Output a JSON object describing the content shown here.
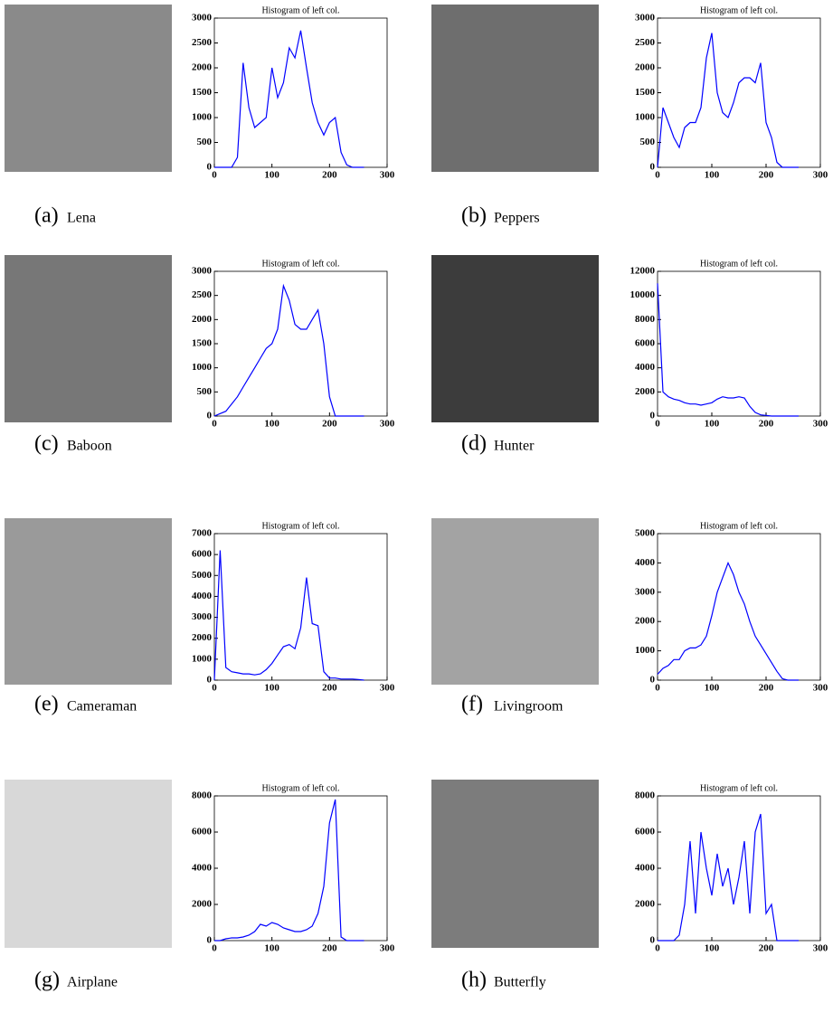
{
  "panels": [
    {
      "label": "(a)",
      "name": "Lena"
    },
    {
      "label": "(b)",
      "name": "Peppers"
    },
    {
      "label": "(c)",
      "name": "Baboon"
    },
    {
      "label": "(d)",
      "name": "Hunter"
    },
    {
      "label": "(e)",
      "name": "Cameraman"
    },
    {
      "label": "(f)",
      "name": "Livingroom"
    },
    {
      "label": "(g)",
      "name": "Airplane"
    },
    {
      "label": "(h)",
      "name": "Butterfly"
    }
  ],
  "chart_data": [
    {
      "type": "line",
      "title": "Histogram of left col.",
      "color": "#0000ff",
      "x": [
        0,
        10,
        20,
        30,
        40,
        50,
        60,
        70,
        80,
        90,
        100,
        110,
        120,
        130,
        140,
        150,
        160,
        170,
        180,
        190,
        200,
        210,
        220,
        230,
        240,
        250,
        260
      ],
      "values": [
        0,
        0,
        0,
        0,
        200,
        2100,
        1200,
        800,
        900,
        1000,
        2000,
        1400,
        1700,
        2400,
        2200,
        2750,
        2000,
        1300,
        900,
        650,
        900,
        1000,
        300,
        50,
        0,
        0,
        0
      ],
      "xlim": [
        0,
        300
      ],
      "xticks": [
        0,
        100,
        200,
        300
      ],
      "ylim": [
        0,
        3000
      ],
      "yticks": [
        0,
        500,
        1000,
        1500,
        2000,
        2500,
        3000
      ]
    },
    {
      "type": "line",
      "title": "Histogram of left col.",
      "color": "#0000ff",
      "x": [
        0,
        10,
        20,
        30,
        40,
        50,
        60,
        70,
        80,
        90,
        100,
        110,
        120,
        130,
        140,
        150,
        160,
        170,
        180,
        190,
        200,
        210,
        220,
        230,
        240,
        250,
        260
      ],
      "values": [
        0,
        1200,
        900,
        600,
        400,
        800,
        900,
        900,
        1200,
        2200,
        2700,
        1500,
        1100,
        1000,
        1300,
        1700,
        1800,
        1800,
        1700,
        2100,
        900,
        600,
        100,
        0,
        0,
        0,
        0
      ],
      "xlim": [
        0,
        300
      ],
      "xticks": [
        0,
        100,
        200,
        300
      ],
      "ylim": [
        0,
        3000
      ],
      "yticks": [
        0,
        500,
        1000,
        1500,
        2000,
        2500,
        3000
      ]
    },
    {
      "type": "line",
      "title": "Histogram of left col.",
      "color": "#0000ff",
      "x": [
        0,
        10,
        20,
        30,
        40,
        50,
        60,
        70,
        80,
        90,
        100,
        110,
        120,
        130,
        140,
        150,
        160,
        170,
        180,
        190,
        200,
        210,
        220,
        230,
        240,
        250,
        260
      ],
      "values": [
        0,
        50,
        100,
        250,
        400,
        600,
        800,
        1000,
        1200,
        1400,
        1500,
        1800,
        2700,
        2400,
        1900,
        1800,
        1800,
        2000,
        2200,
        1500,
        400,
        0,
        0,
        0,
        0,
        0,
        0
      ],
      "xlim": [
        0,
        300
      ],
      "xticks": [
        0,
        100,
        200,
        300
      ],
      "ylim": [
        0,
        3000
      ],
      "yticks": [
        0,
        500,
        1000,
        1500,
        2000,
        2500,
        3000
      ]
    },
    {
      "type": "line",
      "title": "Histogram of left col.",
      "color": "#0000ff",
      "x": [
        0,
        10,
        20,
        30,
        40,
        50,
        60,
        70,
        80,
        90,
        100,
        110,
        120,
        130,
        140,
        150,
        160,
        170,
        180,
        190,
        200,
        210,
        220,
        230,
        240,
        250,
        260
      ],
      "values": [
        11000,
        2000,
        1600,
        1400,
        1300,
        1100,
        1000,
        1000,
        900,
        1000,
        1100,
        1400,
        1600,
        1500,
        1500,
        1600,
        1500,
        800,
        300,
        100,
        50,
        0,
        0,
        0,
        0,
        0,
        0
      ],
      "xlim": [
        0,
        300
      ],
      "xticks": [
        0,
        100,
        200,
        300
      ],
      "ylim": [
        0,
        12000
      ],
      "yticks": [
        0,
        2000,
        4000,
        6000,
        8000,
        10000,
        12000
      ]
    },
    {
      "type": "line",
      "title": "Histogram of left col.",
      "color": "#0000ff",
      "x": [
        0,
        10,
        20,
        30,
        40,
        50,
        60,
        70,
        80,
        90,
        100,
        110,
        120,
        130,
        140,
        150,
        160,
        170,
        180,
        190,
        200,
        210,
        220,
        230,
        240,
        250,
        260
      ],
      "values": [
        0,
        6200,
        600,
        400,
        350,
        300,
        300,
        250,
        300,
        500,
        800,
        1200,
        1600,
        1700,
        1500,
        2500,
        4900,
        2700,
        2600,
        400,
        100,
        100,
        50,
        50,
        50,
        30,
        0
      ],
      "xlim": [
        0,
        300
      ],
      "xticks": [
        0,
        100,
        200,
        300
      ],
      "ylim": [
        0,
        7000
      ],
      "yticks": [
        0,
        1000,
        2000,
        3000,
        4000,
        5000,
        6000,
        7000
      ]
    },
    {
      "type": "line",
      "title": "Histogram of left col.",
      "color": "#0000ff",
      "x": [
        0,
        10,
        20,
        30,
        40,
        50,
        60,
        70,
        80,
        90,
        100,
        110,
        120,
        130,
        140,
        150,
        160,
        170,
        180,
        190,
        200,
        210,
        220,
        230,
        240,
        250,
        260
      ],
      "values": [
        200,
        400,
        500,
        700,
        700,
        1000,
        1100,
        1100,
        1200,
        1500,
        2200,
        3000,
        3500,
        4000,
        3600,
        3000,
        2600,
        2000,
        1500,
        1200,
        900,
        600,
        300,
        50,
        0,
        0,
        0
      ],
      "xlim": [
        0,
        300
      ],
      "xticks": [
        0,
        100,
        200,
        300
      ],
      "ylim": [
        0,
        5000
      ],
      "yticks": [
        0,
        1000,
        2000,
        3000,
        4000,
        5000
      ]
    },
    {
      "type": "line",
      "title": "Histogram of left col.",
      "color": "#0000ff",
      "x": [
        0,
        10,
        20,
        30,
        40,
        50,
        60,
        70,
        80,
        90,
        100,
        110,
        120,
        130,
        140,
        150,
        160,
        170,
        180,
        190,
        200,
        210,
        220,
        230,
        240,
        250,
        260
      ],
      "values": [
        0,
        0,
        100,
        150,
        150,
        200,
        300,
        500,
        900,
        800,
        1000,
        900,
        700,
        600,
        500,
        500,
        600,
        800,
        1500,
        3000,
        6500,
        7800,
        200,
        0,
        0,
        0,
        0
      ],
      "xlim": [
        0,
        300
      ],
      "xticks": [
        0,
        100,
        200,
        300
      ],
      "ylim": [
        0,
        8000
      ],
      "yticks": [
        0,
        2000,
        4000,
        6000,
        8000
      ]
    },
    {
      "type": "line",
      "title": "Histogram of left col.",
      "color": "#0000ff",
      "x": [
        0,
        10,
        20,
        30,
        40,
        50,
        60,
        70,
        80,
        90,
        100,
        110,
        120,
        130,
        140,
        150,
        160,
        170,
        180,
        190,
        200,
        210,
        220,
        230,
        240,
        250,
        260
      ],
      "values": [
        0,
        0,
        0,
        0,
        300,
        2000,
        5500,
        1500,
        6000,
        4000,
        2500,
        4800,
        3000,
        4000,
        2000,
        3500,
        5500,
        1500,
        6000,
        7000,
        1500,
        2000,
        0,
        0,
        0,
        0,
        0
      ],
      "xlim": [
        0,
        300
      ],
      "xticks": [
        0,
        100,
        200,
        300
      ],
      "ylim": [
        0,
        8000
      ],
      "yticks": [
        0,
        2000,
        4000,
        6000,
        8000
      ]
    }
  ]
}
